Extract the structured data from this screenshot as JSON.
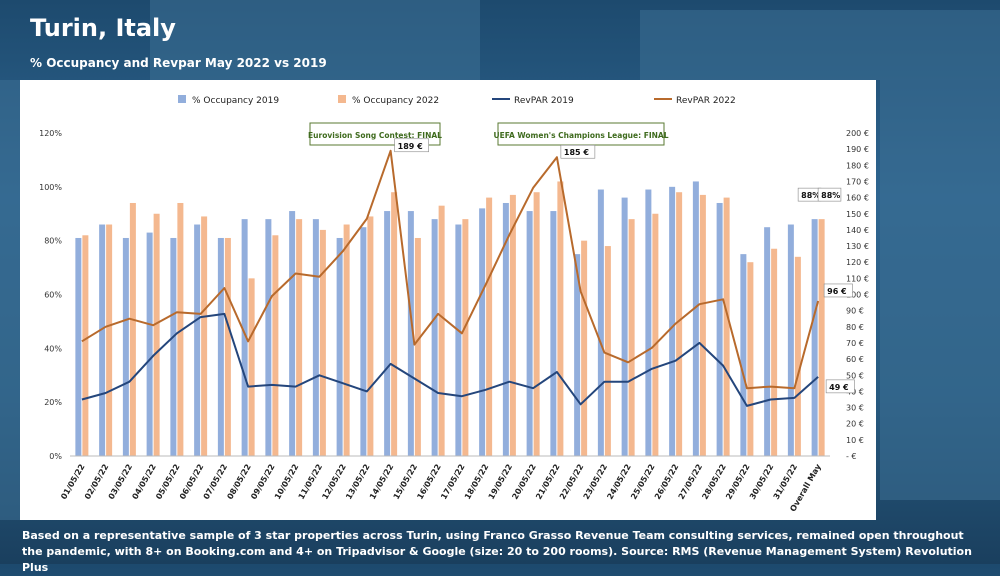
{
  "header": {
    "title": "Turin, Italy",
    "subtitle": "% Occupancy and Revpar May 2022 vs 2019"
  },
  "footer": {
    "note": "Based on a representative sample of 3 star properties across Turin, using Franco Grasso Revenue Team consulting services, remained open throughout the pandemic, with 8+ on Booking.com and 4+ on Tripadvisor & Google (size: 20 to 200 rooms). Source: RMS (Revenue Management System) Revolution Plus"
  },
  "colors": {
    "occ2019": "#92aedc",
    "occ2022": "#f4b88f",
    "revpar2019": "#24467c",
    "revpar2022": "#b86a2c",
    "annotation_border": "#5a7a32",
    "annotation_text": "#3f6b1e"
  },
  "chart_data": {
    "type": "bar",
    "categories": [
      "01/05/22",
      "02/05/22",
      "03/05/22",
      "04/05/22",
      "05/05/22",
      "06/05/22",
      "07/05/22",
      "08/05/22",
      "09/05/22",
      "10/05/22",
      "11/05/22",
      "12/05/22",
      "13/05/22",
      "14/05/22",
      "15/05/22",
      "16/05/22",
      "17/05/22",
      "18/05/22",
      "19/05/22",
      "20/05/22",
      "21/05/22",
      "22/05/22",
      "23/05/22",
      "24/05/22",
      "25/05/22",
      "26/05/22",
      "27/05/22",
      "28/05/22",
      "29/05/22",
      "30/05/22",
      "31/05/22",
      "Overall May"
    ],
    "y_left": {
      "ylim": [
        0,
        120
      ],
      "ticks": [
        "0%",
        "20%",
        "40%",
        "60%",
        "80%",
        "100%",
        "120%"
      ]
    },
    "y_right": {
      "ylim": [
        0,
        200
      ],
      "ticks": [
        "- €",
        "10 €",
        "20 €",
        "30 €",
        "40 €",
        "50 €",
        "60 €",
        "70 €",
        "80 €",
        "90 €",
        "100 €",
        "110 €",
        "120 €",
        "130 €",
        "140 €",
        "150 €",
        "160 €",
        "170 €",
        "180 €",
        "190 €",
        "200 €"
      ]
    },
    "series": [
      {
        "name": "% Occupancy 2019",
        "type": "bar",
        "axis": "left",
        "values": [
          81,
          86,
          81,
          83,
          81,
          86,
          81,
          88,
          88,
          91,
          88,
          81,
          85,
          91,
          91,
          88,
          86,
          92,
          94,
          91,
          91,
          75,
          99,
          96,
          99,
          100,
          102,
          94,
          75,
          85,
          86,
          88
        ]
      },
      {
        "name": "% Occupancy 2022",
        "type": "bar",
        "axis": "left",
        "values": [
          82,
          86,
          94,
          90,
          94,
          89,
          81,
          66,
          82,
          88,
          84,
          86,
          89,
          98,
          81,
          93,
          88,
          96,
          97,
          98,
          102,
          80,
          78,
          88,
          90,
          98,
          97,
          96,
          72,
          77,
          74,
          88
        ]
      },
      {
        "name": "RevPAR 2019",
        "type": "line",
        "axis": "right",
        "values": [
          35,
          39,
          46,
          62,
          76,
          86,
          88,
          43,
          44,
          43,
          50,
          45,
          40,
          57,
          48,
          39,
          37,
          41,
          46,
          42,
          52,
          32,
          46,
          46,
          54,
          59,
          70,
          56,
          31,
          35,
          36,
          49
        ]
      },
      {
        "name": "RevPAR 2022",
        "type": "line",
        "axis": "right",
        "values": [
          71,
          80,
          85,
          81,
          89,
          88,
          104,
          71,
          99,
          113,
          111,
          127,
          147,
          189,
          69,
          88,
          76,
          106,
          137,
          166,
          185,
          102,
          64,
          58,
          67,
          82,
          94,
          97,
          42,
          43,
          42,
          96
        ]
      }
    ],
    "data_labels": [
      {
        "series": "% Occupancy 2019",
        "index": 31,
        "text": "88%"
      },
      {
        "series": "% Occupancy 2022",
        "index": 31,
        "text": "88%"
      },
      {
        "series": "RevPAR 2022",
        "index": 13,
        "text": "189 €"
      },
      {
        "series": "RevPAR 2022",
        "index": 20,
        "text": "185 €"
      },
      {
        "series": "RevPAR 2022",
        "index": 31,
        "text": "96 €"
      },
      {
        "series": "RevPAR 2019",
        "index": 31,
        "text": "49 €"
      }
    ],
    "annotations": [
      {
        "text": "Eurovision Song Contest: FINAL",
        "index": 13
      },
      {
        "text": "UEFA Women's Champions League: FINAL",
        "index": 20
      }
    ],
    "legend": "top",
    "grid": false
  }
}
